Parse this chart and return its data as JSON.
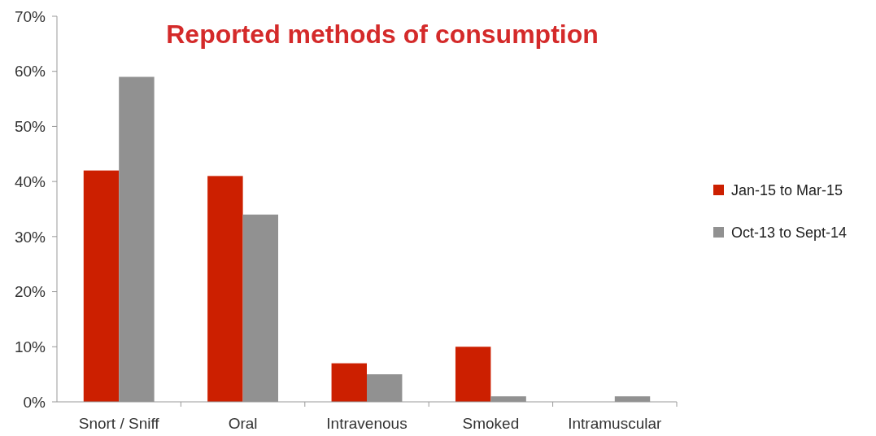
{
  "chart_data": {
    "type": "bar",
    "title": "Reported methods of consumption",
    "categories": [
      "Snort / Sniff",
      "Oral",
      "Intravenous",
      "Smoked",
      "Intramuscular"
    ],
    "series": [
      {
        "name": "Jan-15 to Mar-15",
        "color": "#cc1f00",
        "values": [
          42,
          41,
          7,
          10,
          0
        ]
      },
      {
        "name": "Oct-13 to Sept-14",
        "color": "#919191",
        "values": [
          59,
          34,
          5,
          1,
          1
        ]
      }
    ],
    "ylim": [
      0,
      70
    ],
    "yticks": [
      {
        "value": 0,
        "label": "0%"
      },
      {
        "value": 10,
        "label": "10%"
      },
      {
        "value": 20,
        "label": "20%"
      },
      {
        "value": 30,
        "label": "30%"
      },
      {
        "value": 40,
        "label": "40%"
      },
      {
        "value": 50,
        "label": "50%"
      },
      {
        "value": 60,
        "label": "60%"
      },
      {
        "value": 70,
        "label": "70%"
      }
    ],
    "grid": false,
    "legend": "right"
  }
}
